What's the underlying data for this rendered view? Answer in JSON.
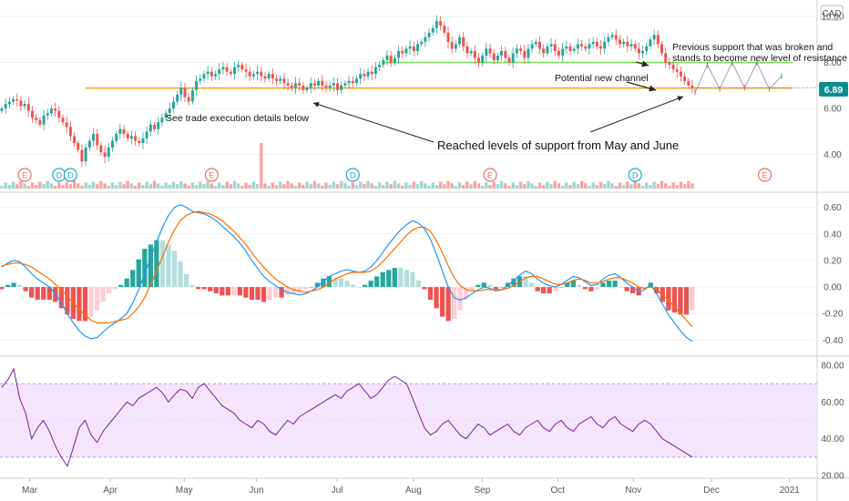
{
  "chart_data": {
    "type": "stock-chart",
    "currency": "CAD",
    "price": {
      "type": "candlestick",
      "last_price_label": "6.89",
      "y_ticks": [
        "10.00",
        "8.00",
        "6.00",
        "4.00"
      ],
      "y_tick_values": [
        10,
        8,
        6,
        4
      ],
      "ylim": [
        2.6,
        10.4
      ],
      "close": [
        6.0,
        6.2,
        6.3,
        6.4,
        6.35,
        6.1,
        6.2,
        5.9,
        5.6,
        5.5,
        5.3,
        5.7,
        5.8,
        6.0,
        5.9,
        5.6,
        5.4,
        5.2,
        4.8,
        4.5,
        4.2,
        3.7,
        4.3,
        4.6,
        4.9,
        4.4,
        4.1,
        3.9,
        4.3,
        4.6,
        4.9,
        5.1,
        4.9,
        4.7,
        4.8,
        4.6,
        4.5,
        4.7,
        5.0,
        5.3,
        5.1,
        5.4,
        5.6,
        5.8,
        6.0,
        6.3,
        6.6,
        6.9,
        6.5,
        6.3,
        6.8,
        7.2,
        7.3,
        7.5,
        7.6,
        7.4,
        7.5,
        7.7,
        7.8,
        7.6,
        7.5,
        7.8,
        7.9,
        7.7,
        7.6,
        7.4,
        7.5,
        7.6,
        7.4,
        7.3,
        7.5,
        7.3,
        7.2,
        7.3,
        7.1,
        7.0,
        6.9,
        7.1,
        7.0,
        6.8,
        6.9,
        7.1,
        7.0,
        7.2,
        7.0,
        6.9,
        7.0,
        7.1,
        6.8,
        7.0,
        7.1,
        7.2,
        7.1,
        7.3,
        7.5,
        7.4,
        7.6,
        7.5,
        7.8,
        7.9,
        8.1,
        8.3,
        8.0,
        8.2,
        8.5,
        8.4,
        8.6,
        8.7,
        8.5,
        8.8,
        8.9,
        9.1,
        9.3,
        9.5,
        9.8,
        9.6,
        9.3,
        8.9,
        8.6,
        8.8,
        9.1,
        8.7,
        8.4,
        8.5,
        8.2,
        8.0,
        8.3,
        8.6,
        8.4,
        8.1,
        8.3,
        8.5,
        8.2,
        8.0,
        8.4,
        8.6,
        8.5,
        8.2,
        8.6,
        8.8,
        8.9,
        8.6,
        8.4,
        8.7,
        8.8,
        8.5,
        8.3,
        8.6,
        8.7,
        8.5,
        8.6,
        8.8,
        8.7,
        8.6,
        8.8,
        8.9,
        8.7,
        8.6,
        8.9,
        9.1,
        9.2,
        9.0,
        8.8,
        8.9,
        8.7,
        8.8,
        8.6,
        8.4,
        8.5,
        8.7,
        9.0,
        9.2,
        8.8,
        8.4,
        8.0,
        7.9,
        7.7,
        7.6,
        7.4,
        7.2,
        7.0,
        6.9
      ],
      "support_lines": [
        {
          "level": 6.89,
          "color": "#f5a623",
          "from_bar": 22,
          "to_bar": 195
        },
        {
          "level": 8.0,
          "color": "#7ed957",
          "from_bar": 100,
          "to_bar": 200
        }
      ],
      "projection_zigzag": [
        6.7,
        7.9,
        6.85,
        8.0,
        6.9,
        8.0,
        6.85,
        7.4
      ],
      "events": [
        {
          "label": "E",
          "bar": 6,
          "kind": "earnings"
        },
        {
          "label": "D",
          "bar": 15,
          "kind": "dividend"
        },
        {
          "label": "D",
          "bar": 18,
          "kind": "dividend"
        },
        {
          "label": "E",
          "bar": 55,
          "kind": "earnings"
        },
        {
          "label": "D",
          "bar": 92,
          "kind": "dividend"
        },
        {
          "label": "E",
          "bar": 128,
          "kind": "earnings"
        },
        {
          "label": "D",
          "bar": 166,
          "kind": "dividend"
        },
        {
          "label": "E",
          "bar": 200,
          "kind": "earnings"
        }
      ]
    },
    "macd": {
      "y_ticks": [
        "0.60",
        "0.40",
        "0.20",
        "0.00",
        "-0.20",
        "-0.40"
      ],
      "y_tick_values": [
        0.6,
        0.4,
        0.2,
        0.0,
        -0.2,
        -0.4
      ],
      "ylim": [
        -0.48,
        0.68
      ],
      "macd_color": "#2196f3",
      "signal_color": "#ff6d00",
      "macd": [
        0.15,
        0.18,
        0.2,
        0.19,
        0.15,
        0.1,
        0.06,
        0.03,
        0.0,
        -0.05,
        -0.12,
        -0.2,
        -0.27,
        -0.33,
        -0.37,
        -0.39,
        -0.38,
        -0.34,
        -0.3,
        -0.27,
        -0.24,
        -0.2,
        -0.12,
        -0.02,
        0.1,
        0.22,
        0.34,
        0.45,
        0.54,
        0.6,
        0.62,
        0.6,
        0.57,
        0.56,
        0.55,
        0.53,
        0.5,
        0.46,
        0.42,
        0.38,
        0.33,
        0.27,
        0.2,
        0.14,
        0.08,
        0.04,
        0.01,
        -0.02,
        -0.04,
        -0.05,
        -0.06,
        -0.05,
        -0.03,
        0.0,
        0.04,
        0.08,
        0.1,
        0.12,
        0.13,
        0.12,
        0.11,
        0.12,
        0.15,
        0.2,
        0.26,
        0.32,
        0.38,
        0.43,
        0.47,
        0.5,
        0.48,
        0.44,
        0.36,
        0.25,
        0.12,
        0.0,
        -0.08,
        -0.1,
        -0.08,
        -0.05,
        -0.02,
        0.0,
        -0.01,
        -0.03,
        -0.02,
        0.01,
        0.05,
        0.09,
        0.12,
        0.1,
        0.06,
        0.03,
        0.01,
        0.0,
        0.02,
        0.05,
        0.08,
        0.07,
        0.04,
        0.01,
        0.02,
        0.06,
        0.09,
        0.1,
        0.07,
        0.03,
        0.0,
        -0.04,
        -0.02,
        0.02,
        -0.05,
        -0.13,
        -0.21,
        -0.27,
        -0.33,
        -0.38,
        -0.41
      ],
      "signal": [
        0.16,
        0.17,
        0.18,
        0.18,
        0.17,
        0.15,
        0.12,
        0.09,
        0.06,
        0.02,
        -0.02,
        -0.07,
        -0.12,
        -0.17,
        -0.21,
        -0.25,
        -0.27,
        -0.27,
        -0.27,
        -0.26,
        -0.25,
        -0.24,
        -0.2,
        -0.15,
        -0.08,
        0.02,
        0.12,
        0.23,
        0.34,
        0.43,
        0.5,
        0.54,
        0.56,
        0.57,
        0.56,
        0.55,
        0.53,
        0.5,
        0.46,
        0.42,
        0.37,
        0.32,
        0.26,
        0.2,
        0.15,
        0.1,
        0.06,
        0.03,
        0.0,
        -0.02,
        -0.03,
        -0.04,
        -0.03,
        -0.02,
        0.0,
        0.03,
        0.06,
        0.08,
        0.1,
        0.11,
        0.11,
        0.11,
        0.12,
        0.15,
        0.19,
        0.24,
        0.29,
        0.34,
        0.39,
        0.43,
        0.45,
        0.45,
        0.42,
        0.35,
        0.26,
        0.16,
        0.07,
        0.01,
        -0.02,
        -0.03,
        -0.03,
        -0.02,
        -0.02,
        -0.02,
        -0.02,
        -0.01,
        0.01,
        0.04,
        0.07,
        0.08,
        0.08,
        0.06,
        0.04,
        0.02,
        0.02,
        0.03,
        0.05,
        0.06,
        0.05,
        0.03,
        0.03,
        0.04,
        0.06,
        0.07,
        0.07,
        0.05,
        0.03,
        0.0,
        -0.01,
        0.0,
        -0.02,
        -0.06,
        -0.1,
        -0.15,
        -0.2,
        -0.25,
        -0.3
      ]
    },
    "rsi": {
      "y_ticks": [
        "80.00",
        "60.00",
        "40.00",
        "20.00"
      ],
      "y_tick_values": [
        80,
        60,
        40,
        20
      ],
      "ylim": [
        20,
        82
      ],
      "band": [
        30,
        70
      ],
      "line_color": "#7b1fa2",
      "band_fill": "#f3e5fc",
      "values": [
        68,
        72,
        78,
        62,
        54,
        40,
        46,
        50,
        44,
        36,
        30,
        25,
        35,
        46,
        50,
        42,
        38,
        44,
        48,
        52,
        56,
        60,
        58,
        62,
        64,
        66,
        68,
        65,
        60,
        64,
        67,
        66,
        62,
        68,
        70,
        66,
        62,
        58,
        56,
        54,
        50,
        48,
        46,
        50,
        48,
        44,
        42,
        46,
        50,
        48,
        52,
        54,
        56,
        58,
        60,
        62,
        64,
        62,
        66,
        68,
        70,
        66,
        62,
        64,
        68,
        72,
        74,
        72,
        70,
        62,
        54,
        46,
        42,
        44,
        48,
        50,
        46,
        42,
        40,
        44,
        48,
        46,
        42,
        44,
        46,
        48,
        44,
        42,
        46,
        48,
        50,
        46,
        44,
        48,
        50,
        46,
        44,
        48,
        50,
        52,
        48,
        46,
        50,
        52,
        48,
        46,
        44,
        48,
        50,
        48,
        44,
        40,
        38,
        36,
        34,
        32,
        30
      ]
    },
    "x_axis": {
      "tick_labels": [
        "Mar",
        "Apr",
        "May",
        "Jun",
        "Jul",
        "Aug",
        "Sep",
        "Oct",
        "Nov",
        "Dec",
        "2021"
      ],
      "tick_positions": [
        0.035,
        0.13,
        0.217,
        0.302,
        0.397,
        0.487,
        0.568,
        0.657,
        0.746,
        0.838,
        0.93
      ]
    },
    "annotations": [
      {
        "id": "a1",
        "text": "See trade execution details below"
      },
      {
        "id": "a2",
        "text": "Reached levels of support from May and June"
      },
      {
        "id": "a3",
        "text": "Potential new channel"
      },
      {
        "id": "a4",
        "lines": [
          "Previous support that was broken and",
          "stands to become new level of resistance"
        ]
      }
    ]
  }
}
